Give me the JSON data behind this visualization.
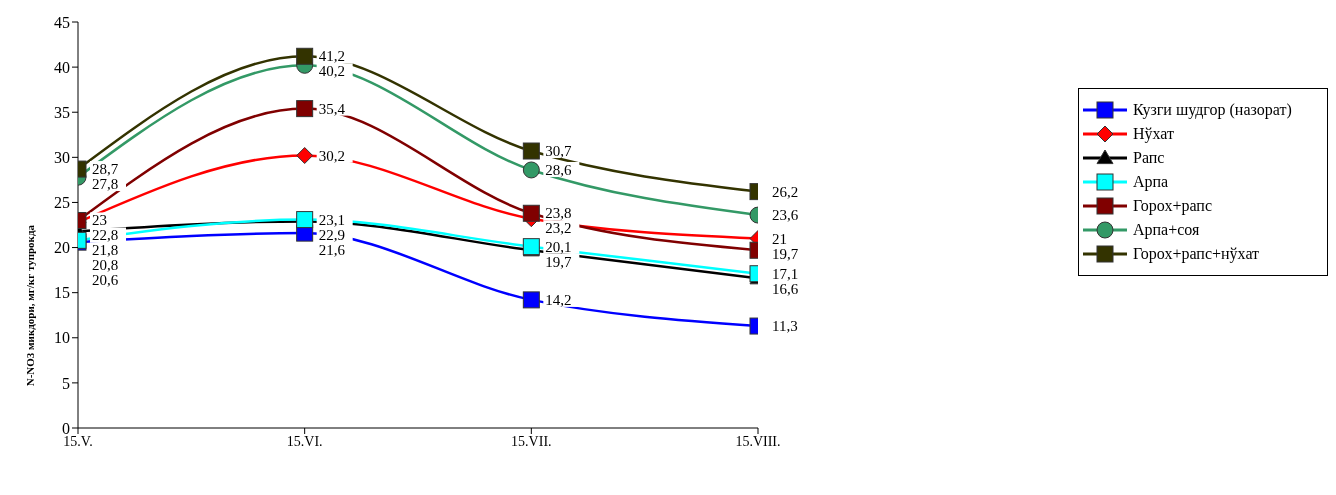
{
  "chart_data": {
    "type": "line",
    "ylabel": "N-NO3 микдори, мг/кг тупрокда",
    "categories": [
      "15.V.",
      "15.VI.",
      "15.VII.",
      "15.VIII."
    ],
    "ylim": [
      0,
      45
    ],
    "yticks": [
      0,
      5,
      10,
      15,
      20,
      25,
      30,
      35,
      40,
      45
    ],
    "grid": false,
    "legend": "right",
    "series": [
      {
        "name": "Кузги шудгор (назорат)",
        "color": "#0000ff",
        "marker": "square",
        "values": [
          20.6,
          21.6,
          14.2,
          11.3
        ],
        "value_labels": [
          "20,6",
          "21,6",
          "14,2",
          "11,3"
        ]
      },
      {
        "name": "Нўхат",
        "color": "#ff0000",
        "marker": "diamond",
        "values": [
          22.8,
          30.2,
          23.2,
          21
        ],
        "value_labels": [
          "22,8",
          "30,2",
          "23,2",
          "21"
        ]
      },
      {
        "name": "Рапс",
        "color": "#000000",
        "marker": "triangle",
        "values": [
          21.8,
          22.9,
          19.7,
          16.6
        ],
        "value_labels": [
          "21,8",
          "22,9",
          "19,7",
          "16,6"
        ]
      },
      {
        "name": "Арпа",
        "color": "#00ffff",
        "marker": "square",
        "values": [
          20.8,
          23.1,
          20.1,
          17.1
        ],
        "value_labels": [
          "20,8",
          "23,1",
          "20,1",
          "17,1"
        ]
      },
      {
        "name": "Горох+рапс",
        "color": "#800000",
        "marker": "square",
        "values": [
          23,
          35.4,
          23.8,
          19.7
        ],
        "value_labels": [
          "23",
          "35,4",
          "23,8",
          "19,7"
        ]
      },
      {
        "name": "Арпа+соя",
        "color": "#339966",
        "marker": "circle",
        "values": [
          27.8,
          40.2,
          28.6,
          23.6
        ],
        "value_labels": [
          "27,8",
          "40,2",
          "28,6",
          "23,6"
        ]
      },
      {
        "name": "Горох+рапс+нўхат",
        "color": "#333300",
        "marker": "square",
        "values": [
          28.7,
          41.2,
          30.7,
          26.2
        ],
        "value_labels": [
          "28,7",
          "41,2",
          "30,7",
          "26,2"
        ]
      }
    ]
  }
}
